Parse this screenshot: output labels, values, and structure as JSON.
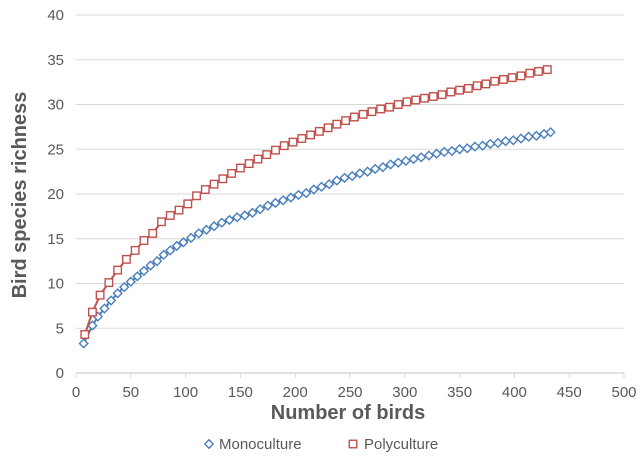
{
  "chart_data": {
    "type": "line",
    "xlabel": "Number of birds",
    "ylabel": "Bird species richness",
    "xlim": [
      0,
      500
    ],
    "ylim": [
      0,
      40
    ],
    "xticks": [
      0,
      50,
      100,
      150,
      200,
      250,
      300,
      350,
      400,
      450,
      500
    ],
    "yticks": [
      0,
      5,
      10,
      15,
      20,
      25,
      30,
      35,
      40
    ],
    "grid": {
      "horizontal": true,
      "vertical": false
    },
    "legend_position": "bottom",
    "colors": {
      "axis": "#595959",
      "grid": "#d9d9d9"
    },
    "series": [
      {
        "name": "Monoculture",
        "marker": "diamond",
        "color": "#4a7ebb",
        "x": [
          7,
          15,
          20,
          26,
          32,
          38,
          44,
          50,
          56,
          62,
          68,
          74,
          80,
          86,
          92,
          98,
          105,
          112,
          119,
          126,
          133,
          140,
          147,
          154,
          161,
          168,
          175,
          182,
          189,
          196,
          203,
          210,
          217,
          224,
          231,
          238,
          245,
          252,
          259,
          266,
          273,
          280,
          287,
          294,
          301,
          308,
          315,
          322,
          329,
          336,
          343,
          350,
          357,
          364,
          371,
          378,
          385,
          392,
          399,
          406,
          413,
          420,
          427,
          433
        ],
        "y": [
          3.3,
          5.3,
          6.3,
          7.2,
          8.1,
          8.9,
          9.6,
          10.2,
          10.8,
          11.4,
          12.0,
          12.5,
          13.2,
          13.7,
          14.2,
          14.6,
          15.1,
          15.6,
          16.0,
          16.4,
          16.8,
          17.1,
          17.4,
          17.6,
          17.9,
          18.3,
          18.7,
          19.0,
          19.3,
          19.6,
          19.9,
          20.1,
          20.5,
          20.8,
          21.1,
          21.5,
          21.8,
          22.0,
          22.3,
          22.5,
          22.8,
          23.0,
          23.3,
          23.5,
          23.7,
          23.9,
          24.1,
          24.3,
          24.5,
          24.7,
          24.8,
          25.0,
          25.1,
          25.3,
          25.4,
          25.6,
          25.7,
          25.9,
          26.0,
          26.2,
          26.4,
          26.5,
          26.7,
          26.9
        ]
      },
      {
        "name": "Polyculture",
        "marker": "square",
        "color": "#c0504d",
        "x": [
          8,
          15,
          22,
          30,
          38,
          46,
          54,
          62,
          70,
          78,
          86,
          94,
          102,
          110,
          118,
          126,
          134,
          142,
          150,
          158,
          166,
          174,
          182,
          190,
          198,
          206,
          214,
          222,
          230,
          238,
          246,
          254,
          262,
          270,
          278,
          286,
          294,
          302,
          310,
          318,
          326,
          334,
          342,
          350,
          358,
          366,
          374,
          382,
          390,
          398,
          406,
          414,
          422,
          430
        ],
        "y": [
          4.3,
          6.8,
          8.7,
          10.1,
          11.5,
          12.7,
          13.7,
          14.8,
          15.6,
          16.9,
          17.6,
          18.2,
          18.9,
          19.8,
          20.5,
          21.1,
          21.7,
          22.3,
          22.9,
          23.4,
          23.9,
          24.4,
          24.9,
          25.4,
          25.8,
          26.2,
          26.6,
          27.0,
          27.4,
          27.8,
          28.2,
          28.6,
          28.9,
          29.2,
          29.5,
          29.7,
          30.0,
          30.3,
          30.5,
          30.7,
          30.9,
          31.1,
          31.4,
          31.6,
          31.8,
          32.1,
          32.3,
          32.6,
          32.8,
          33.0,
          33.2,
          33.5,
          33.7,
          33.9
        ]
      }
    ]
  }
}
